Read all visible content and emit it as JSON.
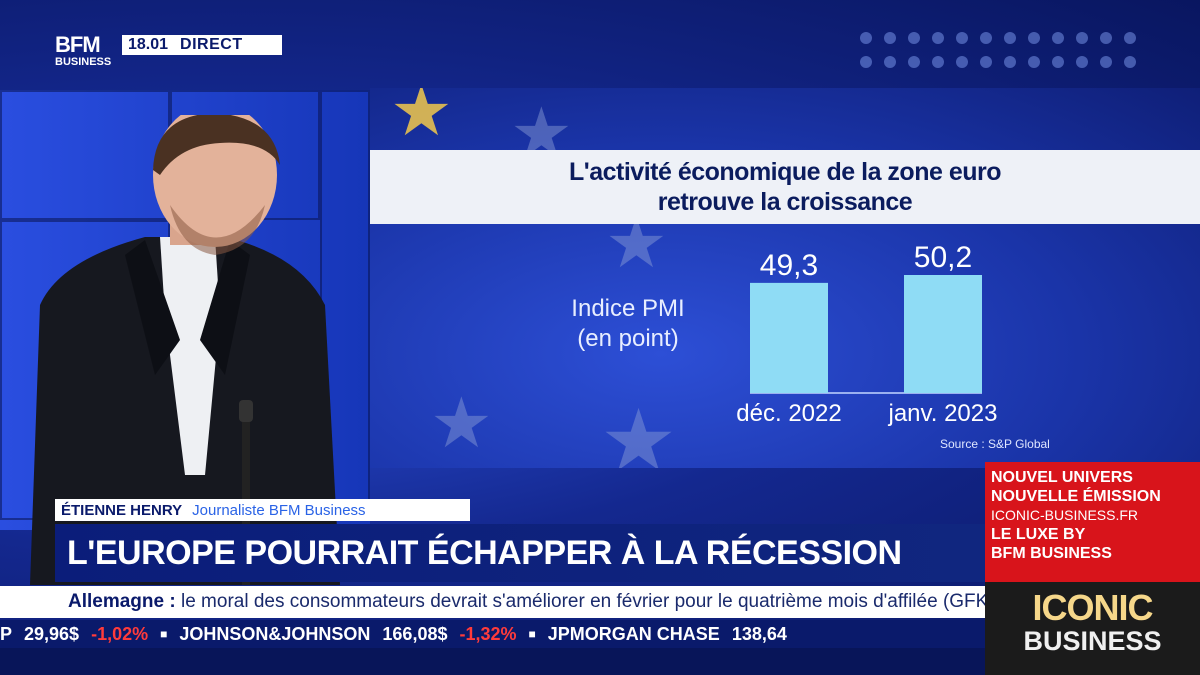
{
  "header": {
    "logo_top": "BFM",
    "logo_bottom": "BUSINESS",
    "time": "18.01",
    "live_label": "DIRECT"
  },
  "chart_data": {
    "type": "bar",
    "title_line1": "L'activité économique de la zone euro",
    "title_line2": "retrouve la croissance",
    "ylabel_line1": "Indice PMI",
    "ylabel_line2": "(en point)",
    "categories": [
      "déc. 2022",
      "janv. 2023"
    ],
    "values": [
      49.3,
      50.2
    ],
    "value_labels": [
      "49,3",
      "50,2"
    ],
    "bar_color": "#8fdcf5",
    "source": "Source : S&P Global"
  },
  "lower_third": {
    "name": "ÉTIENNE HENRY",
    "role": "Journaliste BFM Business",
    "headline": "L'EUROPE POURRAIT ÉCHAPPER À LA RÉCESSION"
  },
  "sub_ticker": {
    "label": "Allemagne :",
    "text": "le moral des consommateurs devrait s'améliorer en février pour le quatrième mois d'affilée (GFK)."
  },
  "stock_ticker": [
    {
      "name": "P",
      "price": "29,96$",
      "change": "-1,02%"
    },
    {
      "name": "JOHNSON&JOHNSON",
      "price": "166,08$",
      "change": "-1,32%"
    },
    {
      "name": "JPMORGAN CHASE",
      "price": "138,64",
      "change": ""
    }
  ],
  "ad": {
    "line1": "NOUVEL UNIVERS",
    "line2": "NOUVELLE ÉMISSION",
    "url": "ICONIC-BUSINESS.FR",
    "line3": "LE LUXE BY",
    "line4": "BFM BUSINESS",
    "brand1": "ICONIC",
    "brand2": "BUSINESS"
  },
  "colors": {
    "navy": "#0a1a6b",
    "accent_blue": "#2a63e6",
    "ad_red": "#d8141b",
    "negative": "#ff3b3b"
  }
}
